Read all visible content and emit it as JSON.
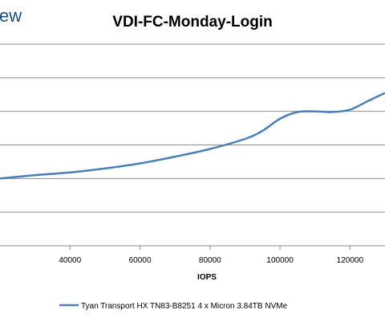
{
  "logo": {
    "text": "ew"
  },
  "chart_data": {
    "type": "line",
    "title": "VDI-FC-Monday-Login",
    "xlabel": "IOPS",
    "ylabel": "",
    "x_ticks": [
      40000,
      60000,
      80000,
      100000,
      120000
    ],
    "x_tick_labels": [
      "40000",
      "60000",
      "80000",
      "100000",
      "120000"
    ],
    "xlim": [
      20000,
      130000
    ],
    "ylim": [
      0,
      6
    ],
    "y_gridlines": [
      1,
      2,
      3,
      4,
      5,
      6
    ],
    "grid": "horizontal",
    "legend_position": "bottom",
    "series": [
      {
        "name": "Tyan Transport HX TN83-B8251 4 x Micron 3.84TB NVMe",
        "color": "#4a7ebb",
        "x": [
          20000,
          30000,
          40000,
          50000,
          60000,
          70000,
          80000,
          90000,
          95000,
          100000,
          105000,
          110000,
          115000,
          120000,
          125000,
          130000
        ],
        "y": [
          2.0,
          2.1,
          2.18,
          2.3,
          2.45,
          2.65,
          2.88,
          3.18,
          3.42,
          3.78,
          3.98,
          4.0,
          3.98,
          4.05,
          4.3,
          4.55
        ]
      }
    ]
  }
}
